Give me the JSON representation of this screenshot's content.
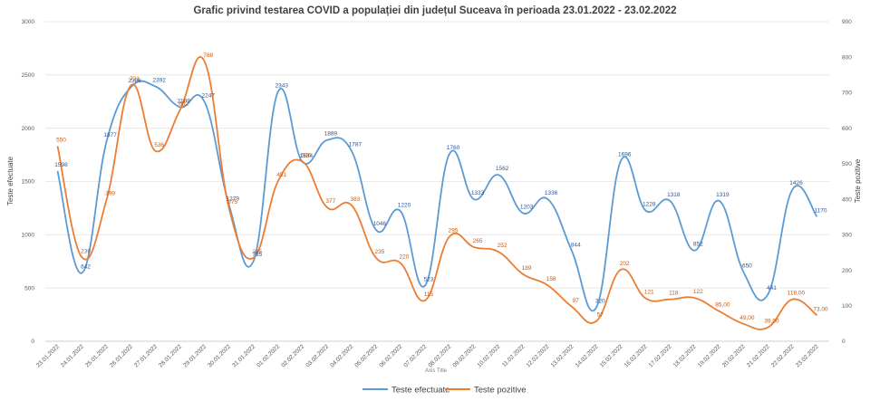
{
  "chart_data": {
    "type": "line",
    "title": "Grafic privind testarea COVID a populației din județul Suceava în perioada 23.01.2022  - 23.02.2022",
    "xlabel": "Axis Title",
    "ylabel": "Teste efectuate",
    "y2label": "Teste pozitive",
    "ylim": [
      0,
      3000
    ],
    "y2lim": [
      0,
      900
    ],
    "yticks": [
      "0",
      "500",
      "1000",
      "1500",
      "2000",
      "2500",
      "3000"
    ],
    "y2ticks": [
      "0",
      "100",
      "200",
      "300",
      "400",
      "500",
      "600",
      "700",
      "800",
      "900"
    ],
    "grid": true,
    "legend_position": "bottom",
    "categories": [
      "23.01.2022",
      "24.01.2022",
      "25.01.2022",
      "26.01.2022",
      "27.01.2022",
      "28.01.2022",
      "29.01.2022",
      "30.01.2022",
      "31.01.2022",
      "01.02.2022",
      "02.02.2022",
      "03.02.2022",
      "04.02.2022",
      "05.02.2022",
      "06.02.2022",
      "07.02.2022",
      "08.02.2022",
      "09.02.2022",
      "10.02.2022",
      "11.02.2022",
      "12.02.2022",
      "13.02.2022",
      "14.02.2022",
      "15.02.2022",
      "16.02.2022",
      "17.02.2022",
      "18.02.2022",
      "19.02.2022",
      "20.02.2022",
      "21.02.2022",
      "22.02.2022",
      "23.02.2022"
    ],
    "series": [
      {
        "name": "Teste efectuate",
        "axis": "left",
        "color": "#5b9bd5",
        "values": [
          1598,
          642,
          1877,
          2386,
          2392,
          2199,
          2247,
          1279,
          755,
          2343,
          1684,
          1889,
          1787,
          1046,
          1220,
          523,
          1760,
          1333,
          1562,
          1203,
          1336,
          844,
          320,
          1696,
          1228,
          1318,
          852,
          1319,
          650,
          441,
          1426,
          1170
        ],
        "labels": [
          "1598",
          "642",
          "1877",
          "2386",
          "2392",
          "2199",
          "2247",
          "1279",
          "755",
          "2343",
          "1684",
          "1889",
          "1787",
          "1046",
          "1220",
          "523",
          "1760",
          "1333",
          "1562",
          "1203",
          "1336",
          "844",
          "320",
          "1696",
          "1228",
          "1318",
          "852",
          "1319",
          "650",
          "441",
          "1426",
          "1170"
        ]
      },
      {
        "name": "Teste pozitive",
        "axis": "right",
        "color": "#ed7d31",
        "values": [
          550,
          236,
          399,
          721,
          536,
          652,
          788,
          375,
          235,
          451,
          506,
          377,
          383,
          235,
          220,
          115,
          295,
          265,
          252,
          189,
          158,
          97,
          57,
          202,
          121,
          118,
          122,
          85,
          49,
          39,
          118,
          73
        ],
        "labels": [
          "550",
          "236",
          "399",
          "721",
          "536",
          "652",
          "788",
          "375",
          "235",
          "451",
          "506",
          "377",
          "383",
          "235",
          "220",
          "115",
          "295",
          "265",
          "252",
          "189",
          "158",
          "97",
          "57",
          "202",
          "121",
          "118",
          "122",
          "85,00",
          "49,00",
          "39,00",
          "118,00",
          "73,00"
        ]
      }
    ]
  }
}
